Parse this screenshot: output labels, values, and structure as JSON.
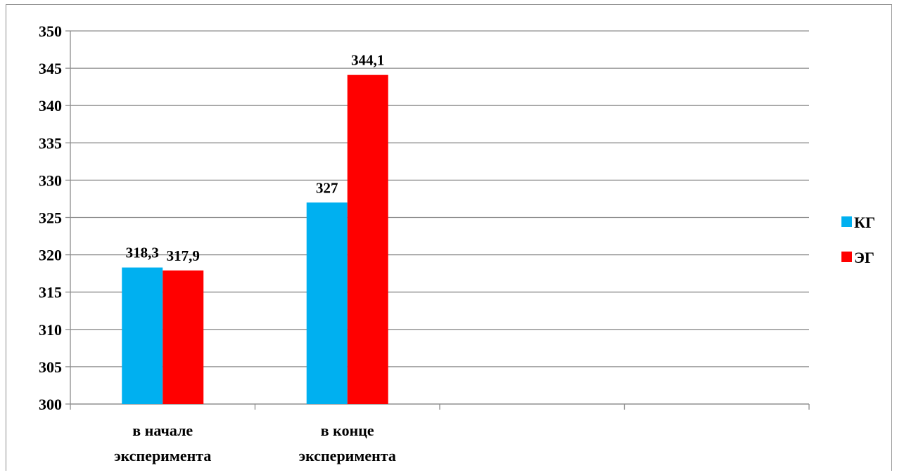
{
  "chart_data": {
    "type": "bar",
    "title": "",
    "xlabel": "",
    "ylabel": "",
    "categories": [
      [
        "в начале",
        "эксперимента"
      ],
      [
        "в конце",
        "эксперимента"
      ],
      [],
      []
    ],
    "series": [
      {
        "name": "КГ",
        "color": "#00B0F0",
        "values": [
          318.3,
          327,
          null,
          null
        ],
        "labels": [
          "318,3",
          "327",
          "",
          ""
        ]
      },
      {
        "name": "ЭГ",
        "color": "#FF0000",
        "values": [
          317.9,
          344.1,
          null,
          null
        ],
        "labels": [
          "317,9",
          "344,1",
          "",
          ""
        ]
      }
    ],
    "ylim": [
      300,
      350
    ],
    "yticks": [
      300,
      305,
      310,
      315,
      320,
      325,
      330,
      335,
      340,
      345,
      350
    ],
    "grid": true,
    "legend_position": "right"
  }
}
